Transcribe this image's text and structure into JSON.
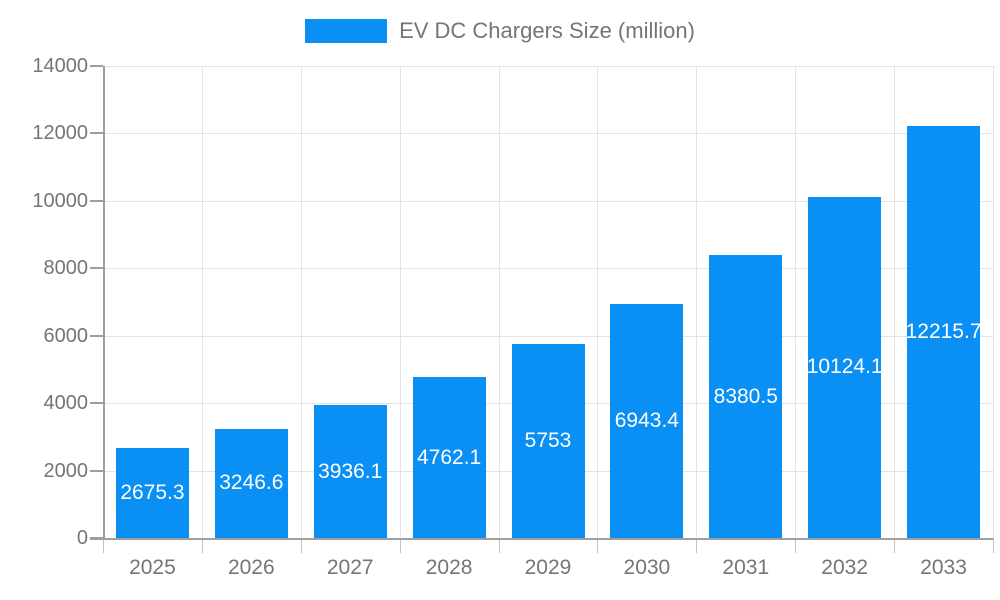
{
  "legend": {
    "label": "EV DC Chargers Size (million)"
  },
  "chart_data": {
    "type": "bar",
    "title": "EV DC Chargers Size (million)",
    "categories": [
      "2025",
      "2026",
      "2027",
      "2028",
      "2029",
      "2030",
      "2031",
      "2032",
      "2033"
    ],
    "values": [
      2675.3,
      3246.6,
      3936.1,
      4762.1,
      5753,
      6943.4,
      8380.5,
      10124.1,
      12215.7
    ],
    "bar_labels": [
      "2675.3",
      "3246.6",
      "3936.1",
      "4762.1",
      "5753",
      "6943.4",
      "8380.5",
      "10124.1",
      "12215.7"
    ],
    "xlabel": "",
    "ylabel": "",
    "ylim": [
      0,
      14000
    ],
    "y_ticks": [
      0,
      2000,
      4000,
      6000,
      8000,
      10000,
      12000,
      14000
    ],
    "grid": true,
    "legend_position": "top-center",
    "colors": {
      "bar": "#0a8ff5",
      "axis": "#9e9e9e",
      "gridline": "#e3e3e3",
      "tick_text": "#757575",
      "bar_label_text": "#ffffff",
      "background": "#ffffff"
    }
  }
}
